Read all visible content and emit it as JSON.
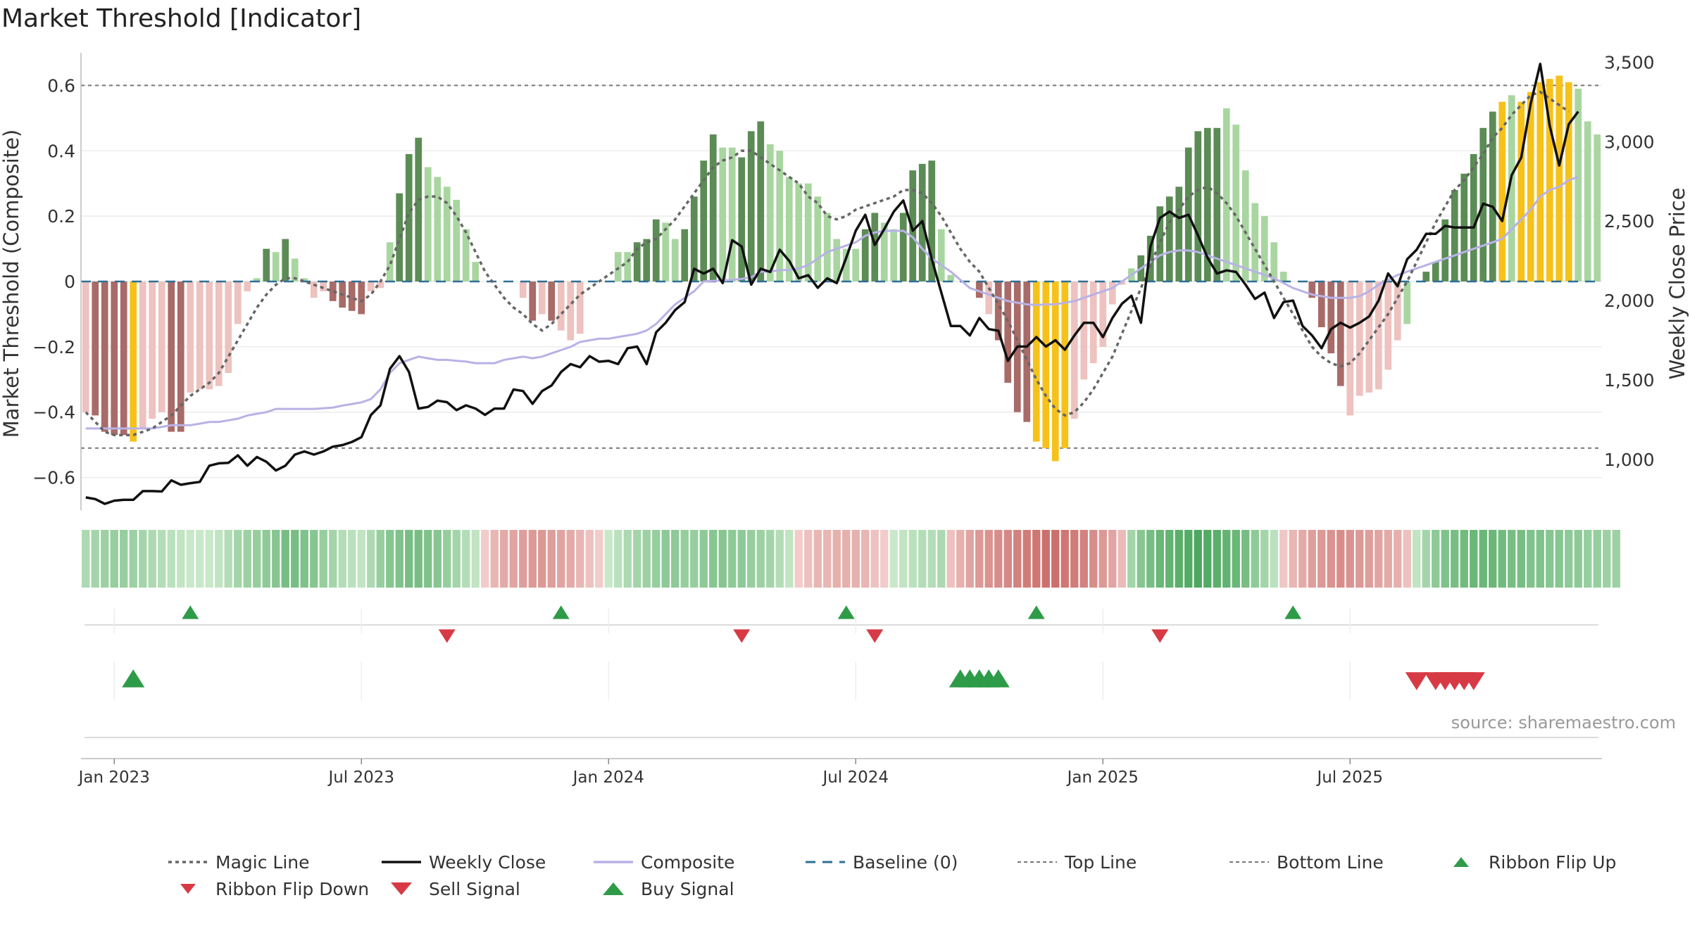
{
  "title": "Market Threshold [Indicator]",
  "source": "source: sharemaestro.com",
  "colors": {
    "pos_dark": "#5b8c55",
    "pos_light": "#a9d6a0",
    "neg_dark": "#a86b68",
    "neg_light": "#edc2bf",
    "extreme": "#f6c21a",
    "close": "#111111",
    "composite": "#b8b2e6",
    "magic": "#666666",
    "baseline": "#2e6f95",
    "threshold": "#777777",
    "buy": "#2e9b48",
    "sell": "#d83a45"
  },
  "legend": [
    {
      "key": "magic",
      "label": "Magic Line"
    },
    {
      "key": "close",
      "label": "Weekly Close"
    },
    {
      "key": "composite",
      "label": "Composite"
    },
    {
      "key": "baseline",
      "label": "Baseline (0)"
    },
    {
      "key": "top",
      "label": "Top Line"
    },
    {
      "key": "bottom",
      "label": "Bottom Line"
    },
    {
      "key": "flipup",
      "label": "Ribbon Flip Up"
    },
    {
      "key": "flipdown",
      "label": "Ribbon Flip Down"
    },
    {
      "key": "sell",
      "label": "Sell Signal"
    },
    {
      "key": "buy",
      "label": "Buy Signal"
    }
  ],
  "chart_data": {
    "type": "bar",
    "xlabel": "",
    "ylabel": "Market Threshold (Composite)",
    "y2label": "Weekly Close Price",
    "ylim": [
      -0.7,
      0.7
    ],
    "y2lim": [
      680,
      3560
    ],
    "yticks": [
      -0.6,
      -0.4,
      -0.2,
      0,
      0.2,
      0.4,
      0.6
    ],
    "ytick_labels": [
      "−0.6",
      "−0.4",
      "−0.2",
      "0",
      "0.2",
      "0.4",
      "0.6"
    ],
    "y2ticks": [
      1000,
      1500,
      2000,
      2500,
      3000,
      3500
    ],
    "y2tick_labels": [
      "1,000",
      "1,500",
      "2,000",
      "2,500",
      "3,000",
      "3,500"
    ],
    "x_ticks": [
      {
        "week": 3,
        "label": "Jan 2023"
      },
      {
        "week": 29,
        "label": "Jul 2023"
      },
      {
        "week": 55,
        "label": "Jan 2024"
      },
      {
        "week": 81,
        "label": "Jul 2024"
      },
      {
        "week": 107,
        "label": "Jan 2025"
      },
      {
        "week": 133,
        "label": "Jul 2025"
      }
    ],
    "top_line": 0.6,
    "bottom_line": -0.51,
    "baseline": 0,
    "bars": [
      -0.4,
      -0.41,
      -0.46,
      -0.47,
      -0.47,
      -0.49,
      -0.45,
      -0.42,
      -0.4,
      -0.46,
      -0.46,
      -0.34,
      -0.33,
      -0.33,
      -0.32,
      -0.28,
      -0.13,
      -0.03,
      0.01,
      0.1,
      0.09,
      0.13,
      0.07,
      0.01,
      -0.05,
      -0.03,
      -0.06,
      -0.08,
      -0.09,
      -0.1,
      -0.03,
      -0.02,
      0.12,
      0.27,
      0.39,
      0.44,
      0.35,
      0.32,
      0.29,
      0.25,
      0.16,
      0.06,
      0,
      0,
      0,
      0,
      -0.05,
      -0.12,
      -0.1,
      -0.12,
      -0.15,
      -0.18,
      -0.16,
      0,
      0,
      0,
      0.09,
      0.09,
      0.12,
      0.13,
      0.19,
      0.18,
      0.13,
      0.16,
      0.26,
      0.37,
      0.45,
      0.41,
      0.41,
      0.38,
      0.46,
      0.49,
      0.42,
      0.4,
      0.32,
      0.3,
      0.3,
      0.26,
      0.21,
      0.13,
      0.1,
      0.1,
      0.16,
      0.21,
      0.18,
      0.16,
      0.21,
      0.34,
      0.36,
      0.37,
      0.16,
      0.02,
      0,
      0,
      -0.05,
      -0.1,
      -0.18,
      -0.31,
      -0.4,
      -0.43,
      -0.49,
      -0.51,
      -0.55,
      -0.51,
      -0.42,
      -0.3,
      -0.25,
      -0.2,
      -0.07,
      -0.01,
      0.04,
      0.08,
      0.14,
      0.23,
      0.26,
      0.29,
      0.41,
      0.46,
      0.47,
      0.47,
      0.53,
      0.48,
      0.34,
      0.24,
      0.2,
      0.12,
      0.03,
      0,
      0,
      -0.05,
      -0.14,
      -0.22,
      -0.32,
      -0.41,
      -0.35,
      -0.34,
      -0.33,
      -0.27,
      -0.18,
      -0.13,
      0,
      0.03,
      0.06,
      0.19,
      0.28,
      0.33,
      0.39,
      0.47,
      0.52,
      0.55,
      0.57,
      0.55,
      0.58,
      0.61,
      0.62,
      0.63,
      0.61,
      0.59,
      0.49,
      0.45
    ],
    "bar_classes": [
      "nl",
      "nd",
      "nd",
      "nd",
      "nd",
      "ex",
      "nl",
      "nl",
      "nl",
      "nd",
      "nd",
      "nl",
      "nl",
      "nl",
      "nl",
      "nl",
      "nl",
      "nl",
      "pl",
      "pd",
      "pl",
      "pd",
      "pl",
      "pl",
      "nl",
      "nl",
      "nd",
      "nd",
      "nd",
      "nd",
      "nl",
      "nl",
      "pl",
      "pd",
      "pd",
      "pd",
      "pl",
      "pl",
      "pl",
      "pl",
      "pl",
      "pl",
      "pl",
      "pl",
      "pl",
      "pl",
      "nl",
      "nd",
      "nl",
      "nd",
      "nl",
      "nl",
      "nl",
      "nl",
      "nl",
      "nl",
      "pl",
      "pl",
      "pd",
      "pd",
      "pd",
      "pl",
      "pl",
      "pd",
      "pd",
      "pd",
      "pd",
      "pl",
      "pl",
      "pd",
      "pd",
      "pd",
      "pl",
      "pl",
      "pl",
      "pl",
      "pl",
      "pl",
      "pl",
      "pl",
      "pl",
      "pl",
      "pd",
      "pd",
      "pl",
      "pl",
      "pd",
      "pd",
      "pd",
      "pd",
      "pl",
      "pl",
      "pl",
      "pl",
      "nd",
      "nl",
      "nd",
      "nd",
      "nd",
      "nd",
      "ex",
      "ex",
      "ex",
      "ex",
      "nl",
      "nl",
      "nl",
      "nl",
      "nl",
      "nl",
      "pl",
      "pd",
      "pd",
      "pd",
      "pd",
      "pd",
      "pd",
      "pd",
      "pd",
      "pd",
      "pl",
      "pl",
      "pl",
      "pl",
      "pl",
      "pl",
      "pl",
      "pl",
      "nd",
      "nd",
      "nd",
      "nd",
      "nd",
      "nl",
      "nl",
      "nl",
      "nl",
      "nl",
      "nl",
      "pl",
      "pl",
      "pd",
      "pd",
      "pd",
      "pd",
      "pd",
      "pd",
      "pd",
      "pd",
      "ex",
      "pl",
      "ex",
      "ex",
      "ex",
      "ex",
      "ex",
      "ex",
      "pl",
      "pl"
    ],
    "series": [
      {
        "name": "Weekly Close",
        "axis": "right",
        "values": [
          760,
          750,
          720,
          740,
          745,
          745,
          800,
          800,
          798,
          868,
          840,
          850,
          858,
          960,
          975,
          978,
          1025,
          960,
          1015,
          985,
          930,
          960,
          1030,
          1050,
          1030,
          1050,
          1080,
          1090,
          1110,
          1140,
          1280,
          1340,
          1570,
          1650,
          1550,
          1320,
          1330,
          1370,
          1360,
          1310,
          1340,
          1320,
          1280,
          1320,
          1320,
          1440,
          1430,
          1350,
          1430,
          1465,
          1550,
          1600,
          1580,
          1650,
          1615,
          1620,
          1600,
          1700,
          1710,
          1600,
          1800,
          1860,
          1940,
          1990,
          2200,
          2170,
          2200,
          2110,
          2380,
          2340,
          2100,
          2200,
          2180,
          2320,
          2250,
          2140,
          2160,
          2080,
          2140,
          2110,
          2270,
          2440,
          2540,
          2350,
          2450,
          2560,
          2630,
          2440,
          2500,
          2260,
          2050,
          1840,
          1840,
          1780,
          1890,
          1820,
          1810,
          1620,
          1710,
          1710,
          1770,
          1710,
          1750,
          1690,
          1780,
          1860,
          1860,
          1770,
          1890,
          1980,
          2030,
          1860,
          2340,
          2520,
          2560,
          2520,
          2540,
          2410,
          2270,
          2170,
          2190,
          2180,
          2100,
          2010,
          2050,
          1890,
          1990,
          2000,
          1840,
          1780,
          1700,
          1820,
          1860,
          1830,
          1860,
          1900,
          2000,
          2170,
          2090,
          2260,
          2320,
          2420,
          2420,
          2470,
          2460,
          2460,
          2460,
          2610,
          2590,
          2500,
          2790,
          2900,
          3240,
          3490,
          3100,
          2850,
          3110,
          3190
        ]
      },
      {
        "name": "Composite",
        "axis": "left",
        "values": [
          -0.45,
          -0.45,
          -0.45,
          -0.45,
          -0.45,
          -0.45,
          -0.45,
          -0.45,
          -0.445,
          -0.44,
          -0.44,
          -0.44,
          -0.435,
          -0.43,
          -0.43,
          -0.425,
          -0.42,
          -0.41,
          -0.405,
          -0.4,
          -0.39,
          -0.39,
          -0.39,
          -0.39,
          -0.39,
          -0.388,
          -0.386,
          -0.38,
          -0.375,
          -0.37,
          -0.36,
          -0.33,
          -0.28,
          -0.25,
          -0.24,
          -0.23,
          -0.235,
          -0.24,
          -0.24,
          -0.243,
          -0.245,
          -0.25,
          -0.25,
          -0.25,
          -0.24,
          -0.235,
          -0.23,
          -0.235,
          -0.23,
          -0.22,
          -0.21,
          -0.2,
          -0.185,
          -0.18,
          -0.175,
          -0.175,
          -0.17,
          -0.165,
          -0.16,
          -0.15,
          -0.13,
          -0.1,
          -0.07,
          -0.05,
          -0.03,
          0,
          0.002,
          0.003,
          0.005,
          0.008,
          0.013,
          0.03,
          0.03,
          0.035,
          0.035,
          0.04,
          0.05,
          0.07,
          0.09,
          0.1,
          0.11,
          0.12,
          0.14,
          0.15,
          0.155,
          0.155,
          0.155,
          0.135,
          0.1,
          0.07,
          0.05,
          0.03,
          0.005,
          -0.02,
          -0.03,
          -0.04,
          -0.05,
          -0.06,
          -0.065,
          -0.07,
          -0.072,
          -0.07,
          -0.07,
          -0.065,
          -0.06,
          -0.05,
          -0.04,
          -0.03,
          -0.02,
          0,
          0.02,
          0.04,
          0.06,
          0.08,
          0.09,
          0.095,
          0.095,
          0.09,
          0.08,
          0.07,
          0.06,
          0.05,
          0.04,
          0.03,
          0.02,
          0.01,
          -0.005,
          -0.02,
          -0.03,
          -0.04,
          -0.045,
          -0.05,
          -0.05,
          -0.05,
          -0.045,
          -0.03,
          -0.01,
          0.005,
          0.02,
          0.03,
          0.04,
          0.05,
          0.06,
          0.07,
          0.08,
          0.09,
          0.1,
          0.11,
          0.12,
          0.13,
          0.16,
          0.19,
          0.22,
          0.26,
          0.28,
          0.29,
          0.31,
          0.32
        ]
      },
      {
        "name": "Magic Line",
        "axis": "left",
        "values": [
          -0.4,
          -0.43,
          -0.46,
          -0.47,
          -0.47,
          -0.47,
          -0.46,
          -0.45,
          -0.43,
          -0.41,
          -0.38,
          -0.35,
          -0.33,
          -0.31,
          -0.28,
          -0.23,
          -0.18,
          -0.13,
          -0.08,
          -0.04,
          -0.01,
          0.01,
          0.01,
          0,
          -0.01,
          -0.02,
          -0.03,
          -0.04,
          -0.05,
          -0.06,
          -0.04,
          0,
          0.05,
          0.13,
          0.21,
          0.25,
          0.26,
          0.26,
          0.24,
          0.2,
          0.15,
          0.09,
          0.03,
          -0.01,
          -0.05,
          -0.08,
          -0.1,
          -0.13,
          -0.15,
          -0.13,
          -0.1,
          -0.07,
          -0.04,
          -0.02,
          0,
          0.02,
          0.04,
          0.06,
          0.1,
          0.12,
          0.13,
          0.16,
          0.19,
          0.23,
          0.27,
          0.31,
          0.35,
          0.37,
          0.38,
          0.4,
          0.4,
          0.38,
          0.36,
          0.34,
          0.32,
          0.3,
          0.26,
          0.24,
          0.2,
          0.19,
          0.2,
          0.22,
          0.23,
          0.24,
          0.25,
          0.26,
          0.28,
          0.28,
          0.27,
          0.24,
          0.2,
          0.15,
          0.1,
          0.06,
          0.03,
          -0.02,
          -0.07,
          -0.12,
          -0.18,
          -0.24,
          -0.3,
          -0.35,
          -0.39,
          -0.41,
          -0.4,
          -0.37,
          -0.33,
          -0.28,
          -0.23,
          -0.16,
          -0.09,
          -0.02,
          0.05,
          0.12,
          0.18,
          0.22,
          0.26,
          0.28,
          0.29,
          0.27,
          0.24,
          0.2,
          0.15,
          0.1,
          0.05,
          0,
          -0.05,
          -0.1,
          -0.15,
          -0.2,
          -0.23,
          -0.25,
          -0.26,
          -0.25,
          -0.22,
          -0.18,
          -0.14,
          -0.1,
          -0.05,
          0,
          0.06,
          0.12,
          0.18,
          0.23,
          0.28,
          0.31,
          0.35,
          0.39,
          0.44,
          0.47,
          0.51,
          0.54,
          0.57,
          0.58,
          0.56,
          0.54,
          0.52
        ]
      }
    ],
    "ribbon": [
      0.25,
      0.3,
      0.35,
      0.4,
      0.4,
      0.35,
      0.3,
      0.25,
      0.2,
      0.15,
      0.1,
      0.05,
      0.05,
      0.05,
      0.1,
      0.2,
      0.3,
      0.35,
      0.4,
      0.45,
      0.5,
      0.6,
      0.6,
      0.55,
      0.5,
      0.4,
      0.3,
      0.2,
      0.15,
      0.1,
      0.25,
      0.4,
      0.5,
      0.55,
      0.6,
      0.6,
      0.55,
      0.5,
      0.4,
      0.3,
      0.2,
      0.1,
      -0.05,
      -0.25,
      -0.35,
      -0.4,
      -0.45,
      -0.5,
      -0.5,
      -0.45,
      -0.4,
      -0.35,
      -0.25,
      -0.15,
      -0.05,
      0.05,
      0.15,
      0.25,
      0.3,
      0.35,
      0.4,
      0.45,
      0.45,
      0.4,
      0.4,
      0.45,
      0.5,
      0.5,
      0.45,
      0.45,
      0.4,
      0.35,
      0.3,
      0.2,
      0.1,
      -0.05,
      -0.15,
      -0.25,
      -0.25,
      -0.3,
      -0.3,
      -0.3,
      -0.25,
      -0.15,
      -0.05,
      0.05,
      0.1,
      0.15,
      0.2,
      0.2,
      0.25,
      -0.15,
      -0.3,
      -0.4,
      -0.5,
      -0.55,
      -0.6,
      -0.65,
      -0.7,
      -0.75,
      -0.8,
      -0.85,
      -0.85,
      -0.8,
      -0.75,
      -0.7,
      -0.6,
      -0.5,
      -0.4,
      -0.2,
      0.3,
      0.5,
      0.6,
      0.7,
      0.75,
      0.8,
      0.85,
      0.9,
      0.85,
      0.8,
      0.75,
      0.7,
      0.6,
      0.45,
      0.3,
      0.15,
      -0.1,
      -0.25,
      -0.35,
      -0.45,
      -0.5,
      -0.55,
      -0.6,
      -0.55,
      -0.5,
      -0.45,
      -0.4,
      -0.35,
      -0.3,
      -0.15,
      0.1,
      0.3,
      0.45,
      0.55,
      0.6,
      0.65,
      0.7,
      0.7,
      0.7,
      0.65,
      0.6,
      0.6,
      0.55,
      0.55,
      0.5,
      0.5,
      0.45,
      0.45,
      0.4,
      0.4,
      0.35,
      0.35
    ],
    "ribbon_flip_up_weeks": [
      11,
      50,
      80,
      100,
      127
    ],
    "ribbon_flip_down_weeks": [
      38,
      69,
      83,
      113
    ],
    "buy_signal_weeks": [
      5,
      92,
      93,
      94,
      95,
      96
    ],
    "sell_signal_weeks": [
      140,
      142,
      143,
      144,
      145,
      146
    ]
  }
}
